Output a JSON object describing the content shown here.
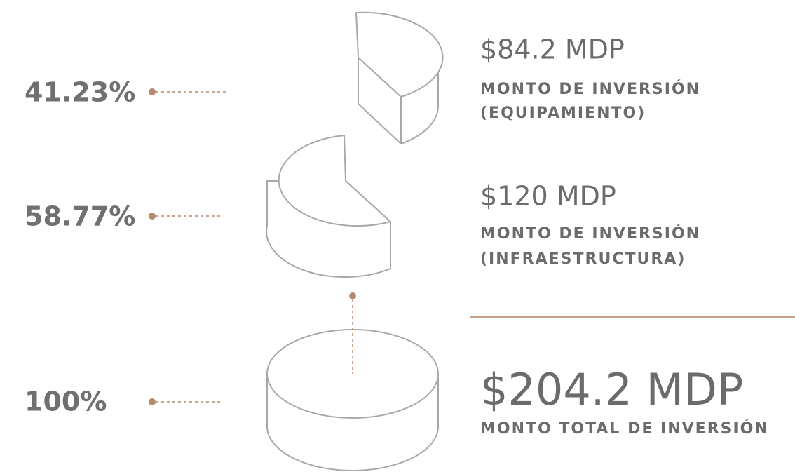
{
  "items": [
    {
      "percent": "41.23%",
      "amount": "$84.2 MDP",
      "label": [
        "MONTO DE INVERSIÓN",
        "(EQUIPAMIENTO)"
      ]
    },
    {
      "percent": "58.77%",
      "amount": "$120 MDP",
      "label": [
        "MONTO DE INVERSIÓN",
        "(INFRAESTRUCTURA)"
      ]
    }
  ],
  "total": {
    "percent": "100%",
    "amount": "$204.2 MDP",
    "label": "MONTO TOTAL DE INVERSIÓN"
  }
}
